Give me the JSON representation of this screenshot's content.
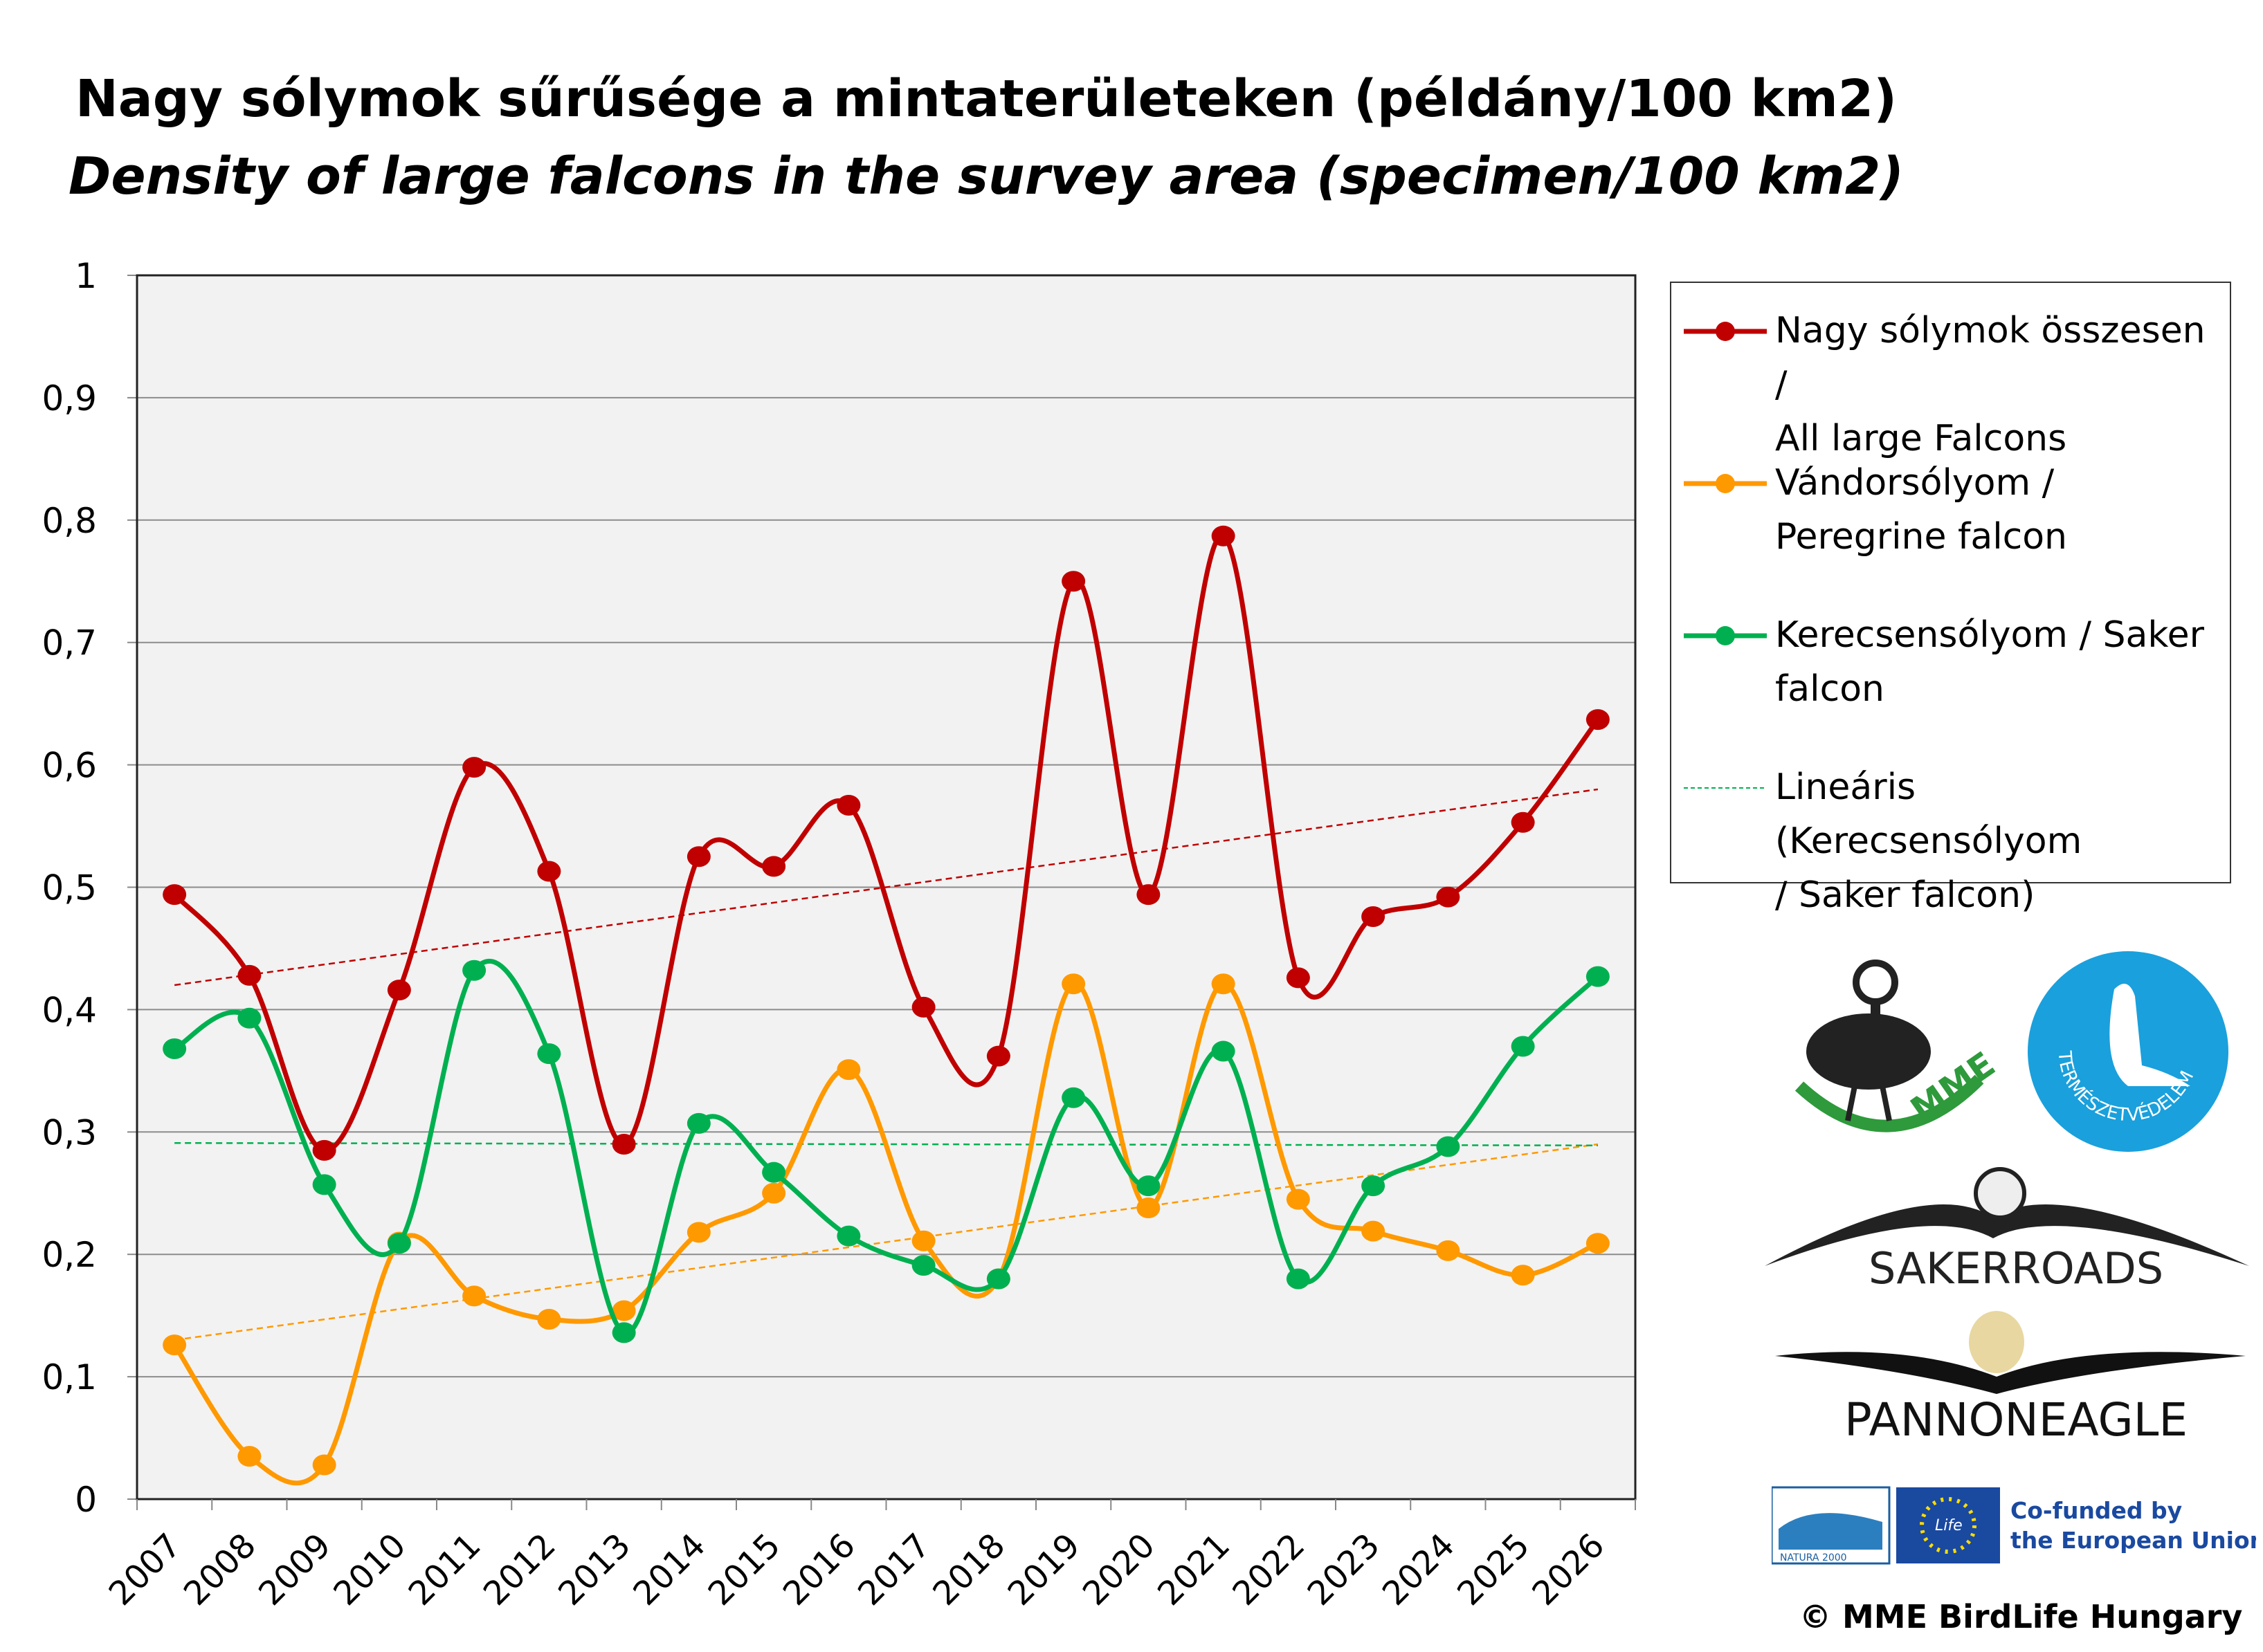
{
  "title": "Nagy sólymok sűrűsége a mintaterületeken (példány/100 km2)",
  "subtitle": "Density of large falcons in the survey area (specimen/100 km2)",
  "chart_data": {
    "type": "line",
    "title": "Nagy sólymok sűrűsége a mintaterületeken (példány/100 km2)",
    "subtitle": "Density of large falcons in the survey area (specimen/100 km2)",
    "xlabel": "",
    "ylabel": "",
    "ylim": [
      0,
      1
    ],
    "yticks": [
      "0",
      "0,1",
      "0,2",
      "0,3",
      "0,4",
      "0,5",
      "0,6",
      "0,7",
      "0,8",
      "0,9",
      "1"
    ],
    "grid": true,
    "smoothed": true,
    "legend_position": "right",
    "categories": [
      "2007",
      "2008",
      "2009",
      "2010",
      "2011",
      "2012",
      "2013",
      "2014",
      "2015",
      "2016",
      "2017",
      "2018",
      "2019",
      "2020",
      "2021",
      "2022",
      "2023",
      "2024",
      "2025",
      "2026"
    ],
    "series": [
      {
        "name": "Nagy sólymok összesen / All large Falcons",
        "color": "#C00000",
        "values": [
          0.494,
          0.428,
          0.285,
          0.416,
          0.598,
          0.513,
          0.29,
          0.525,
          0.517,
          0.567,
          0.402,
          0.362,
          0.75,
          0.494,
          0.787,
          0.426,
          0.476,
          0.492,
          0.553,
          0.637
        ]
      },
      {
        "name": "Vándorsólyom / Peregrine falcon",
        "color": "#FF9900",
        "values": [
          0.126,
          0.035,
          0.028,
          0.21,
          0.166,
          0.147,
          0.154,
          0.218,
          0.25,
          0.351,
          0.211,
          0.18,
          0.421,
          0.238,
          0.421,
          0.245,
          0.219,
          0.203,
          0.183,
          0.209
        ]
      },
      {
        "name": "Kerecsensólyom / Saker falcon",
        "color": "#00B050",
        "values": [
          0.368,
          0.393,
          0.257,
          0.209,
          0.432,
          0.364,
          0.136,
          0.307,
          0.267,
          0.215,
          0.191,
          0.18,
          0.328,
          0.256,
          0.366,
          0.18,
          0.256,
          0.288,
          0.37,
          0.427
        ]
      }
    ],
    "trendlines": [
      {
        "name": "",
        "color": "#C00000",
        "start": 0.42,
        "end": 0.58,
        "in_legend": false
      },
      {
        "name": "",
        "color": "#FF9900",
        "start": 0.13,
        "end": 0.29,
        "in_legend": false
      },
      {
        "name": "Lineáris (Kerecsensólyom / Saker falcon)",
        "color": "#00B050",
        "start": 0.291,
        "end": 0.289,
        "in_legend": true
      }
    ]
  },
  "legend": [
    {
      "line1": "Nagy sólymok összesen /",
      "line2": "All large Falcons"
    },
    {
      "line1": "Vándorsólyom /",
      "line2": "Peregrine falcon"
    },
    {
      "line1": "Kerecsensólyom / Saker",
      "line2": "falcon"
    },
    {
      "line1": "Lineáris (Kerecsensólyom",
      "line2": "/ Saker falcon)"
    }
  ],
  "logos": {
    "mme": "MME",
    "termeszetvedelem": "TERMÉSZETVÉDELEM",
    "sakerroads": "SAKERROADS",
    "pannoneagle": "PANNONEAGLE",
    "natura": "NATURA 2000",
    "eu_line1": "Co-funded by",
    "eu_line2": "the European Union",
    "life": "Life"
  },
  "copyright": "© MME BirdLife Hungary"
}
